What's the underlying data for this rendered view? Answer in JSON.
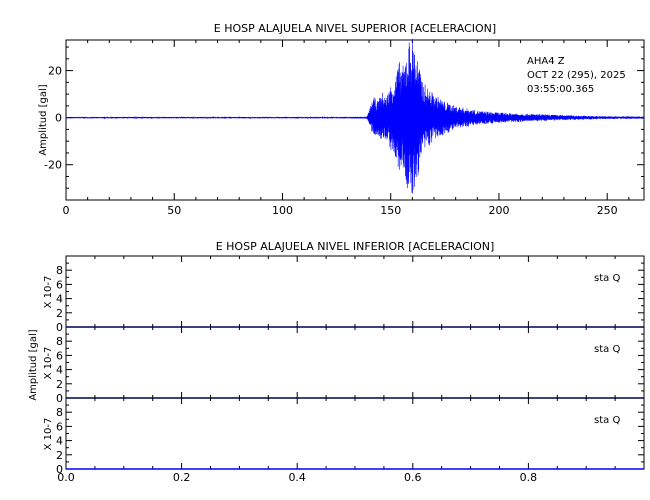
{
  "chart_data": [
    {
      "type": "line",
      "title": "E HOSP ALAJUELA NIVEL SUPERIOR [ACELERACION]",
      "xlabel": "",
      "ylabel": "Amplitud [gal]",
      "xlim": [
        0,
        267
      ],
      "ylim": [
        -35,
        33
      ],
      "x_ticks": [
        0,
        50,
        100,
        150,
        200,
        250
      ],
      "y_ticks": [
        -20,
        0,
        20
      ],
      "annotation": [
        "AHA4   Z",
        "OCT 22 (295), 2025",
        "03:55:00.365"
      ],
      "series": [
        {
          "color": "#0000ff",
          "x": [
            0,
            20,
            40,
            60,
            80,
            100,
            120,
            139,
            140,
            142,
            144,
            146,
            148,
            150,
            152,
            154,
            156,
            158,
            160,
            162,
            164,
            166,
            170,
            175,
            180,
            185,
            190,
            200,
            210,
            220,
            230,
            240,
            250,
            267
          ],
          "envelope": [
            0.3,
            0.3,
            0.3,
            0.3,
            0.3,
            0.3,
            0.3,
            0.4,
            3,
            9,
            7,
            11,
            9,
            14,
            18,
            24,
            22,
            33,
            35,
            28,
            18,
            14,
            10,
            7,
            5,
            4,
            3,
            2.2,
            1.8,
            1.4,
            1.1,
            0.8,
            0.6,
            0.5
          ]
        }
      ]
    },
    {
      "type": "line",
      "title": "E HOSP ALAJUELA NIVEL INFERIOR [ACELERACION]",
      "xlabel": "",
      "ylabel": "Amplitud [gal]",
      "xlim": [
        0,
        1
      ],
      "x_ticks": [
        "0.0",
        "0.2",
        "0.4",
        "0.6",
        "0.8"
      ],
      "panels": [
        {
          "label": "sta    Q",
          "scale": "X 10-7",
          "ylim": [
            0,
            10
          ],
          "y_ticks": [
            "0",
            "2",
            "4",
            "6",
            "8"
          ],
          "values": [
            0,
            0
          ]
        },
        {
          "label": "sta    Q",
          "scale": "X 10-7",
          "ylim": [
            0,
            10
          ],
          "y_ticks": [
            "0",
            "2",
            "4",
            "6",
            "8"
          ],
          "values": [
            0,
            0
          ]
        },
        {
          "label": "sta    Q",
          "scale": "X 10-7",
          "ylim": [
            0,
            10
          ],
          "y_ticks": [
            "0",
            "2",
            "4",
            "6",
            "8"
          ],
          "values": [
            0,
            0
          ]
        }
      ]
    }
  ]
}
